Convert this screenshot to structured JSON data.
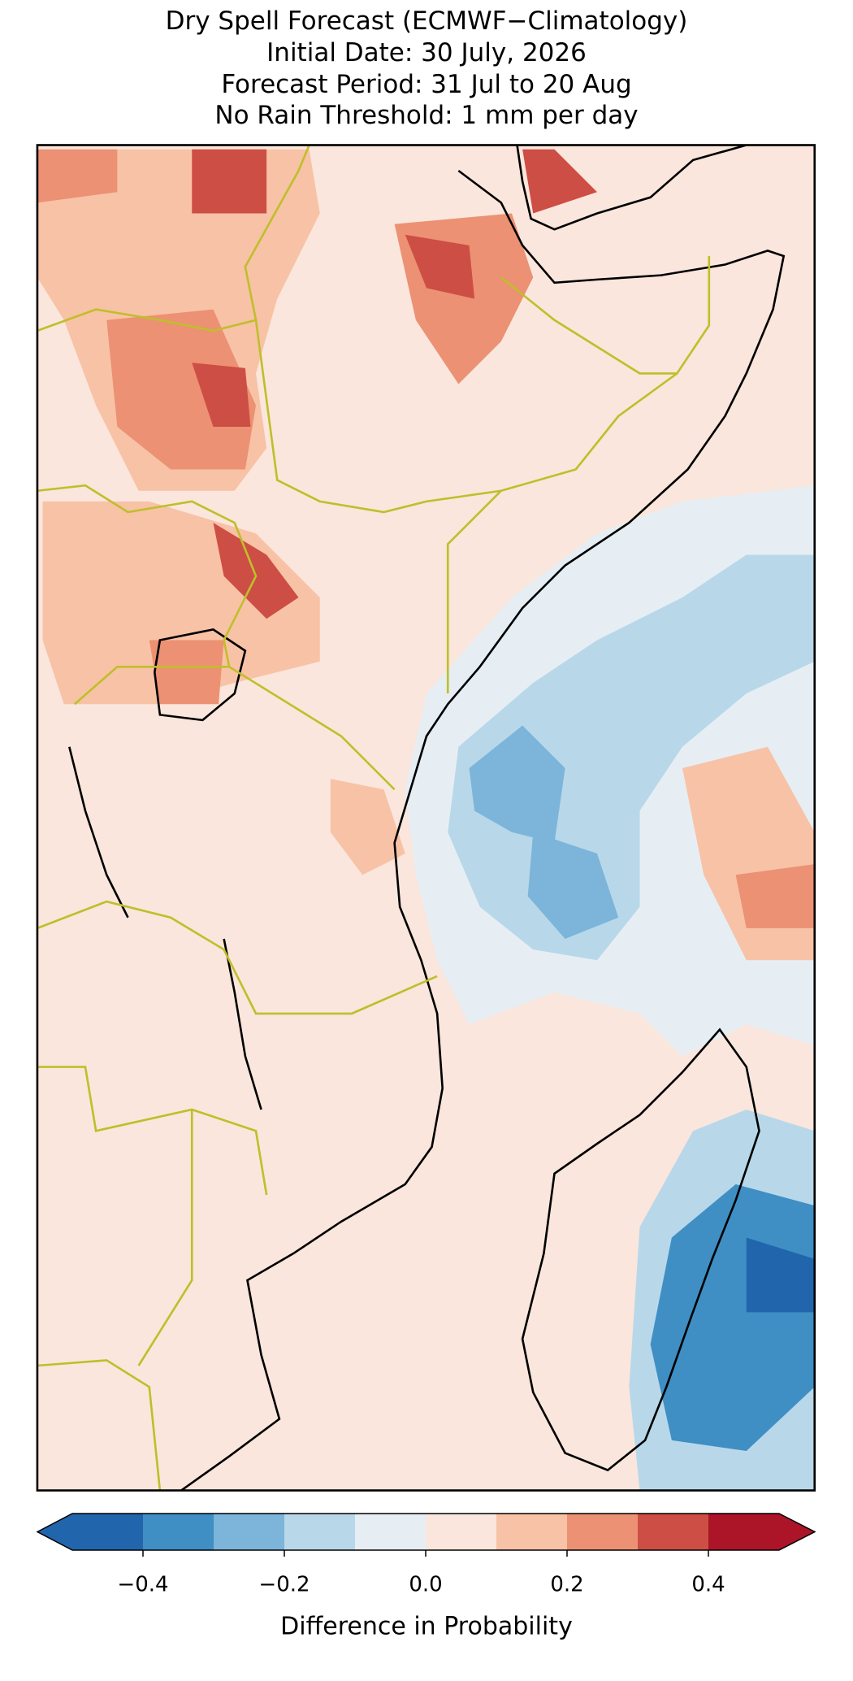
{
  "title": [
    "Dry Spell Forecast (ECMWF−Climatology)",
    "Initial Date: 30 July, 2026",
    "Forecast Period: 31 Jul to 20 Aug",
    "No Rain Threshold: 1 mm per day"
  ],
  "colorbar": {
    "label": "Difference in Probability",
    "extend": "both",
    "bounds": [
      -0.5,
      -0.4,
      -0.3,
      -0.2,
      -0.1,
      0,
      0.1,
      0.2,
      0.3,
      0.4,
      0.5
    ],
    "colors": [
      "#2166ac",
      "#3f8fc4",
      "#7cb5d9",
      "#b8d8ea",
      "#e6eef4",
      "#fae6dc",
      "#f8c2a6",
      "#ec9173",
      "#cd4e44",
      "#ac1428"
    ],
    "ticks": [
      {
        "value": -0.4,
        "label": "−0.4"
      },
      {
        "value": -0.2,
        "label": "−0.2"
      },
      {
        "value": 0,
        "label": "0.0"
      },
      0.2,
      0.4
    ]
  }
}
